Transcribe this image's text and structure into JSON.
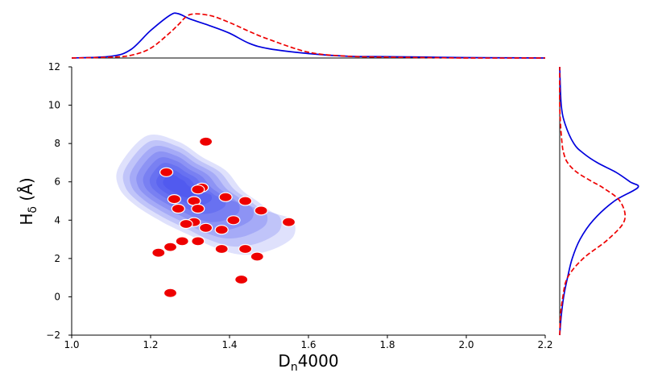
{
  "chart_data": {
    "type": "scatter",
    "title": "",
    "xlabel": "Dn4000",
    "xlabel_main": "D",
    "xlabel_sub": "n",
    "xlabel_tail": "4000",
    "ylabel": "Hδ (Å)",
    "ylabel_main": "H",
    "ylabel_sub": "δ",
    "ylabel_tail": " (Å)",
    "xlim": [
      1.0,
      2.2
    ],
    "ylim": [
      -2,
      12
    ],
    "xticks": [
      1.0,
      1.2,
      1.4,
      1.6,
      1.8,
      2.0,
      2.2
    ],
    "xtick_labels": [
      "1.0",
      "1.2",
      "1.4",
      "1.6",
      "1.8",
      "2.0",
      "2.2"
    ],
    "yticks": [
      -2,
      0,
      2,
      4,
      6,
      8,
      10,
      12
    ],
    "ytick_labels": [
      "−2",
      "0",
      "2",
      "4",
      "6",
      "8",
      "10",
      "12"
    ],
    "colors": {
      "scatter": "#ee0000",
      "contour": "#3a45ee",
      "blue_line": "#0000dd",
      "red_line": "#ee0000"
    },
    "density_contours": {
      "peak": [
        1.26,
        5.9
      ],
      "levels": 8,
      "outer_outline": [
        [
          1.12,
          6.8
        ],
        [
          1.19,
          8.4
        ],
        [
          1.27,
          8.1
        ],
        [
          1.33,
          7.3
        ],
        [
          1.39,
          6.6
        ],
        [
          1.43,
          5.6
        ],
        [
          1.47,
          5.0
        ],
        [
          1.51,
          4.4
        ],
        [
          1.56,
          4.0
        ],
        [
          1.56,
          3.1
        ],
        [
          1.5,
          2.4
        ],
        [
          1.43,
          2.2
        ],
        [
          1.36,
          2.6
        ],
        [
          1.3,
          3.2
        ],
        [
          1.23,
          3.9
        ],
        [
          1.16,
          4.8
        ],
        [
          1.12,
          5.7
        ]
      ]
    },
    "scatter_points": [
      [
        1.24,
        6.5
      ],
      [
        1.34,
        8.1
      ],
      [
        1.33,
        5.7
      ],
      [
        1.32,
        5.6
      ],
      [
        1.26,
        5.1
      ],
      [
        1.31,
        5.0
      ],
      [
        1.39,
        5.2
      ],
      [
        1.44,
        5.0
      ],
      [
        1.27,
        4.6
      ],
      [
        1.32,
        4.6
      ],
      [
        1.48,
        4.5
      ],
      [
        1.31,
        3.9
      ],
      [
        1.29,
        3.8
      ],
      [
        1.41,
        4.0
      ],
      [
        1.55,
        3.9
      ],
      [
        1.34,
        3.6
      ],
      [
        1.38,
        3.5
      ],
      [
        1.28,
        2.9
      ],
      [
        1.32,
        2.9
      ],
      [
        1.25,
        2.6
      ],
      [
        1.22,
        2.3
      ],
      [
        1.38,
        2.5
      ],
      [
        1.44,
        2.5
      ],
      [
        1.47,
        2.1
      ],
      [
        1.43,
        0.9
      ],
      [
        1.25,
        0.2
      ]
    ],
    "top_marginal": {
      "x": [
        1.0,
        1.1,
        1.15,
        1.2,
        1.25,
        1.27,
        1.3,
        1.35,
        1.4,
        1.45,
        1.5,
        1.6,
        1.7,
        1.8,
        1.9,
        2.0,
        2.2
      ],
      "series": [
        {
          "name": "solid blue",
          "style": "solid",
          "values": [
            0.0,
            0.04,
            0.19,
            0.62,
            0.97,
            1.0,
            0.88,
            0.73,
            0.56,
            0.33,
            0.21,
            0.1,
            0.04,
            0.03,
            0.02,
            0.01,
            0.0
          ]
        },
        {
          "name": "dashed red",
          "style": "dashed",
          "values": [
            0.0,
            0.02,
            0.06,
            0.22,
            0.58,
            0.75,
            0.98,
            0.96,
            0.8,
            0.6,
            0.42,
            0.13,
            0.04,
            0.02,
            0.01,
            0.0,
            0.0
          ]
        }
      ]
    },
    "right_marginal": {
      "y": [
        -2,
        -1,
        0,
        1,
        2,
        3,
        4,
        5,
        5.7,
        6,
        6.5,
        7,
        7.5,
        8,
        9,
        10,
        12
      ],
      "series": [
        {
          "name": "solid blue",
          "style": "solid",
          "values": [
            0.0,
            0.02,
            0.05,
            0.1,
            0.16,
            0.26,
            0.43,
            0.7,
            1.0,
            0.9,
            0.72,
            0.48,
            0.3,
            0.18,
            0.07,
            0.02,
            0.0
          ]
        },
        {
          "name": "dashed red",
          "style": "dashed",
          "values": [
            0.0,
            0.01,
            0.04,
            0.1,
            0.3,
            0.62,
            0.83,
            0.77,
            0.55,
            0.42,
            0.22,
            0.1,
            0.05,
            0.03,
            0.01,
            0.0,
            0.0
          ]
        }
      ]
    }
  }
}
